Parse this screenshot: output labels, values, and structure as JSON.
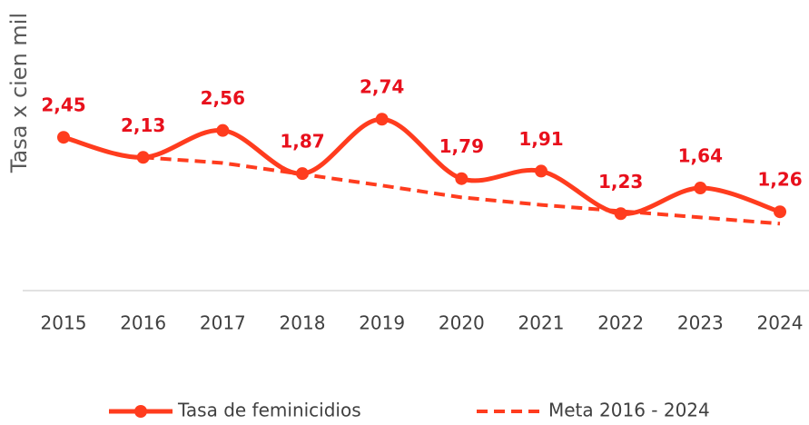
{
  "chart_data": {
    "type": "line",
    "y_label": "Tasa x cien mil",
    "categories": [
      "2015",
      "2016",
      "2017",
      "2018",
      "2019",
      "2020",
      "2021",
      "2022",
      "2023",
      "2024"
    ],
    "ylim": [
      0,
      4.5
    ],
    "series": [
      {
        "name": "Tasa de feminicidios",
        "color": "#ff3c1e",
        "style": "solid",
        "markers": true,
        "values": [
          2.45,
          2.13,
          2.56,
          1.87,
          2.74,
          1.79,
          1.91,
          1.23,
          1.64,
          1.26
        ],
        "value_labels": [
          "2,45",
          "2,13",
          "2,56",
          "1,87",
          "2,74",
          "1,79",
          "1,91",
          "1,23",
          "1,64",
          "1,26"
        ],
        "label_color": "#e8101c"
      },
      {
        "name": "Meta 2016 - 2024",
        "color": "#ff3c1e",
        "style": "dashed",
        "markers": false,
        "values": [
          null,
          2.13,
          2.04,
          1.86,
          1.68,
          1.49,
          1.37,
          1.27,
          1.17,
          1.07
        ]
      }
    ],
    "legend": "bottom"
  }
}
